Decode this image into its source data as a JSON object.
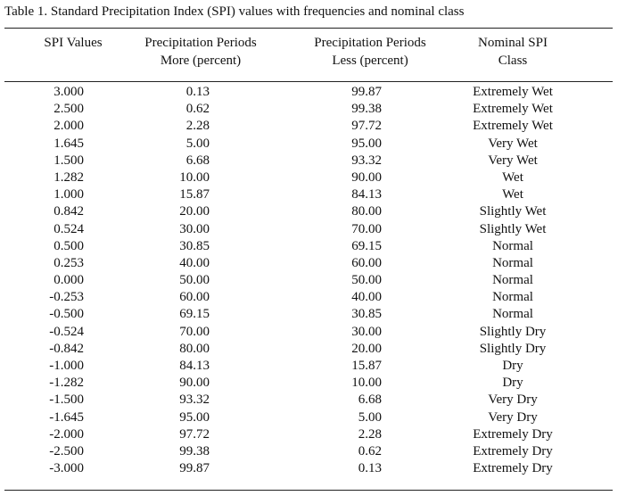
{
  "caption": "Table 1.  Standard Precipitation Index (SPI) values with frequencies and nominal class",
  "headers": {
    "spi": [
      "SPI  Values"
    ],
    "more": [
      "Precipitation Periods",
      "More (percent)"
    ],
    "less": [
      "Precipitation Periods",
      "Less (percent)"
    ],
    "class": [
      "Nominal SPI",
      "Class"
    ]
  },
  "rows": [
    {
      "spi": "3.000",
      "more": "0.13",
      "less": "99.87",
      "cls": "Extremely Wet"
    },
    {
      "spi": "2.500",
      "more": "0.62",
      "less": "99.38",
      "cls": "Extremely Wet"
    },
    {
      "spi": "2.000",
      "more": "2.28",
      "less": "97.72",
      "cls": "Extremely Wet"
    },
    {
      "spi": "1.645",
      "more": "5.00",
      "less": "95.00",
      "cls": "Very Wet"
    },
    {
      "spi": "1.500",
      "more": "6.68",
      "less": "93.32",
      "cls": "Very Wet"
    },
    {
      "spi": "1.282",
      "more": "10.00",
      "less": "90.00",
      "cls": "Wet"
    },
    {
      "spi": "1.000",
      "more": "15.87",
      "less": "84.13",
      "cls": "Wet"
    },
    {
      "spi": "0.842",
      "more": "20.00",
      "less": "80.00",
      "cls": "Slightly Wet"
    },
    {
      "spi": "0.524",
      "more": "30.00",
      "less": "70.00",
      "cls": "Slightly Wet"
    },
    {
      "spi": "0.500",
      "more": "30.85",
      "less": "69.15",
      "cls": "Normal"
    },
    {
      "spi": "0.253",
      "more": "40.00",
      "less": "60.00",
      "cls": "Normal"
    },
    {
      "spi": "0.000",
      "more": "50.00",
      "less": "50.00",
      "cls": "Normal"
    },
    {
      "spi": "-0.253",
      "more": "60.00",
      "less": "40.00",
      "cls": "Normal"
    },
    {
      "spi": "-0.500",
      "more": "69.15",
      "less": "30.85",
      "cls": "Normal"
    },
    {
      "spi": "-0.524",
      "more": "70.00",
      "less": "30.00",
      "cls": "Slightly Dry"
    },
    {
      "spi": "-0.842",
      "more": "80.00",
      "less": "20.00",
      "cls": "Slightly Dry"
    },
    {
      "spi": "-1.000",
      "more": "84.13",
      "less": "15.87",
      "cls": "Dry"
    },
    {
      "spi": "-1.282",
      "more": "90.00",
      "less": "10.00",
      "cls": "Dry"
    },
    {
      "spi": "-1.500",
      "more": "93.32",
      "less": "6.68",
      "cls": "Very Dry"
    },
    {
      "spi": "-1.645",
      "more": "95.00",
      "less": "5.00",
      "cls": "Very Dry"
    },
    {
      "spi": "-2.000",
      "more": "97.72",
      "less": "2.28",
      "cls": "Extremely Dry"
    },
    {
      "spi": "-2.500",
      "more": "99.38",
      "less": "0.62",
      "cls": "Extremely Dry"
    },
    {
      "spi": "-3.000",
      "more": "99.87",
      "less": "0.13",
      "cls": "Extremely Dry"
    }
  ]
}
